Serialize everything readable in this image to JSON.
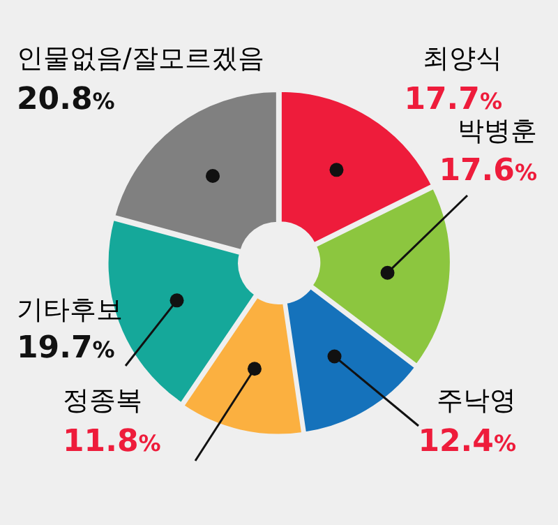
{
  "chart_data": {
    "type": "donut",
    "categories": [
      "최양식",
      "박병훈",
      "주낙영",
      "정종복",
      "기타후보",
      "인물없음/잘모르겠음"
    ],
    "values": [
      17.7,
      17.6,
      12.4,
      11.8,
      19.7,
      20.8
    ],
    "colors": [
      "#ee1c3b",
      "#8cc63f",
      "#1572bb",
      "#fbb040",
      "#15a89a",
      "#808080"
    ],
    "value_labels": [
      "17.7%",
      "17.6%",
      "12.4%",
      "11.8%",
      "19.7%",
      "20.8%"
    ],
    "legend": false
  }
}
